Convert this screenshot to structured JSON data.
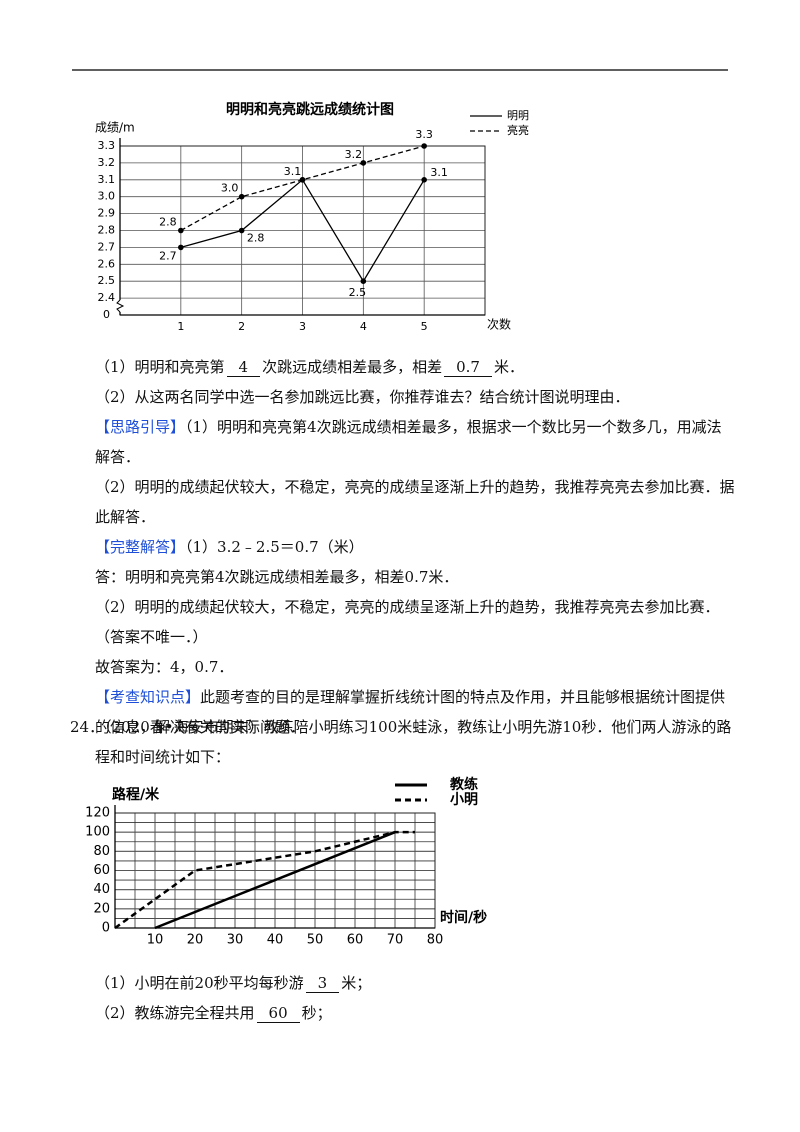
{
  "chart_data": [
    {
      "type": "line",
      "title": "明明和亮亮跳远成绩统计图",
      "ylabel": "成绩/m",
      "xlabel": "次数",
      "x": [
        1,
        2,
        3,
        4,
        5
      ],
      "xlim": [
        0,
        6
      ],
      "ylim": [
        2.3,
        3.3
      ],
      "xticks": [
        1,
        2,
        3,
        4,
        5
      ],
      "yticks": [
        2.4,
        2.5,
        2.6,
        2.7,
        2.8,
        2.9,
        {
          "value": 3,
          "label": "3.0"
        },
        3.1,
        3.2,
        3.3
      ],
      "y_origin_label": 0,
      "axis_break": true,
      "grid": true,
      "markers": true,
      "legend": "upper right",
      "series": [
        {
          "name": "明明",
          "color": "#000000",
          "style": "solid",
          "values": [
            2.7,
            2.8,
            3.1,
            2.5,
            3.1
          ],
          "value_labels": [
            "2.7",
            "2.8",
            null,
            "2.5",
            "3.1"
          ]
        },
        {
          "name": "亮亮",
          "color": "#000000",
          "style": "dashed",
          "values": [
            2.8,
            3,
            3.1,
            3.2,
            3.3
          ],
          "value_labels": [
            "2.8",
            "3.0",
            "3.1",
            "3.2",
            "3.3"
          ]
        }
      ]
    },
    {
      "type": "line",
      "ylabel": "路程/米",
      "xlabel": "时间/秒",
      "xlim": [
        0,
        80
      ],
      "ylim": [
        0,
        120
      ],
      "xticks": [
        10,
        20,
        30,
        40,
        50,
        60,
        70,
        80
      ],
      "yticks": [
        0,
        20,
        40,
        60,
        80,
        100,
        120
      ],
      "grid": true,
      "grid_x_step": 5,
      "grid_y_step": 10,
      "legend": "upper right",
      "series": [
        {
          "name": "教练",
          "color": "#000000",
          "style": "solid",
          "x": [
            10,
            70
          ],
          "values": [
            0,
            100
          ]
        },
        {
          "name": "小明",
          "color": "#000000",
          "style": "dashed",
          "x": [
            0,
            20,
            50,
            70,
            75
          ],
          "values": [
            0,
            60,
            80,
            100,
            100
          ]
        }
      ]
    }
  ],
  "document": {
    "paragraphs": [
      [
        "（1）明明和亮亮第",
        {
          "u": "4"
        },
        "次跳远成绩相差最多，相差",
        {
          "u": "0.7"
        },
        "米．"
      ],
      [
        "（2）从这两名同学中选一名参加跳远比赛，你推荐谁去？结合统计图说明理由．"
      ],
      [
        {
          "tag": "【思路引导】"
        },
        "（1）明明和亮亮第4次跳远成绩相差最多，根据求一个数比另一个数多几，用减法解答．"
      ],
      [
        "（2）明明的成绩起伏较大，不稳定，亮亮的成绩呈逐渐上升的趋势，我推荐亮亮去参加比赛．据此解答．"
      ],
      [
        {
          "tag": "【完整解答】"
        },
        "（1）3.2﹣2.5＝0.7（米）"
      ],
      [
        "答：明明和亮亮第4次跳远成绩相差最多，相差0.7米．"
      ],
      [
        "（2）明明的成绩起伏较大，不稳定，亮亮的成绩呈逐渐上升的趋势，我推荐亮亮去参加比赛．（答案不唯一．）"
      ],
      [
        "故答案为：4，0.7．"
      ],
      [
        {
          "tag": "【考查知识点】"
        },
        "此题考查的目的是理解掌握折线统计图的特点及作用，并且能够根据统计图提供的信息，解决有关的实际问题．"
      ]
    ],
    "question": [
      [
        "24．（2020春•海安市期末）教练陪小明练习100米蛙泳，教练让小明先游10秒．他们两人游泳的路程和时间统计如下："
      ]
    ],
    "after": [
      [
        "（1）小明在前20秒平均每秒游",
        {
          "u": "3"
        },
        "米；"
      ],
      [
        "（2）教练游完全程共用",
        {
          "u": "60"
        },
        "秒；"
      ]
    ]
  }
}
